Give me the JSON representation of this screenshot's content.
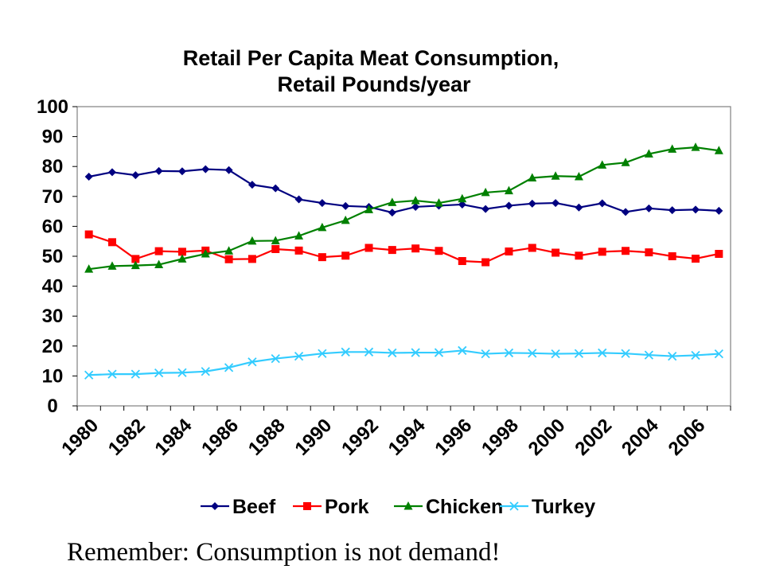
{
  "caption": "Remember: Consumption is not demand!",
  "chart_data": {
    "type": "line",
    "title": "Retail Per Capita Meat Consumption,",
    "subtitle": "Retail Pounds/year",
    "ylim": [
      0,
      100
    ],
    "y_ticks": [
      0,
      10,
      20,
      30,
      40,
      50,
      60,
      70,
      80,
      90,
      100
    ],
    "x_tick_labels": [
      "1980",
      "1982",
      "1984",
      "1986",
      "1988",
      "1990",
      "1992",
      "1994",
      "1996",
      "1998",
      "2000",
      "2002",
      "2004",
      "2006"
    ],
    "x": [
      1980,
      1981,
      1982,
      1983,
      1984,
      1985,
      1986,
      1987,
      1988,
      1989,
      1990,
      1991,
      1992,
      1993,
      1994,
      1995,
      1996,
      1997,
      1998,
      1999,
      2000,
      2001,
      2002,
      2003,
      2004,
      2005,
      2006,
      2007
    ],
    "grid": false,
    "legend_position": "bottom",
    "series": [
      {
        "name": "Beef",
        "color": "#000080",
        "marker": "diamond",
        "values": [
          76.6,
          78.1,
          77.1,
          78.5,
          78.4,
          79.1,
          78.8,
          73.9,
          72.7,
          69.0,
          67.8,
          66.8,
          66.5,
          64.6,
          66.5,
          66.9,
          67.3,
          65.8,
          66.9,
          67.6,
          67.8,
          66.3,
          67.7,
          64.8,
          66.0,
          65.4,
          65.6,
          65.2
        ]
      },
      {
        "name": "Pork",
        "color": "#ff0000",
        "marker": "square",
        "values": [
          57.3,
          54.7,
          49.1,
          51.7,
          51.5,
          51.9,
          49.0,
          49.1,
          52.4,
          51.9,
          49.7,
          50.2,
          52.8,
          52.1,
          52.6,
          51.8,
          48.4,
          48.0,
          51.6,
          52.8,
          51.2,
          50.2,
          51.5,
          51.8,
          51.3,
          50.0,
          49.2,
          50.8
        ]
      },
      {
        "name": "Chicken",
        "color": "#008000",
        "marker": "triangle",
        "values": [
          45.7,
          46.7,
          46.9,
          47.2,
          49.1,
          50.8,
          51.8,
          55.1,
          55.2,
          56.8,
          59.6,
          62.0,
          65.6,
          68.0,
          68.6,
          67.8,
          69.2,
          71.3,
          71.9,
          76.2,
          76.8,
          76.6,
          80.5,
          81.3,
          84.2,
          85.8,
          86.4,
          85.3
        ]
      },
      {
        "name": "Turkey",
        "color": "#33ccff",
        "marker": "x",
        "values": [
          10.3,
          10.6,
          10.6,
          11.0,
          11.1,
          11.5,
          12.8,
          14.7,
          15.8,
          16.6,
          17.5,
          18.0,
          18.0,
          17.7,
          17.8,
          17.8,
          18.5,
          17.4,
          17.7,
          17.6,
          17.4,
          17.5,
          17.7,
          17.5,
          17.0,
          16.6,
          16.9,
          17.4
        ]
      }
    ]
  }
}
